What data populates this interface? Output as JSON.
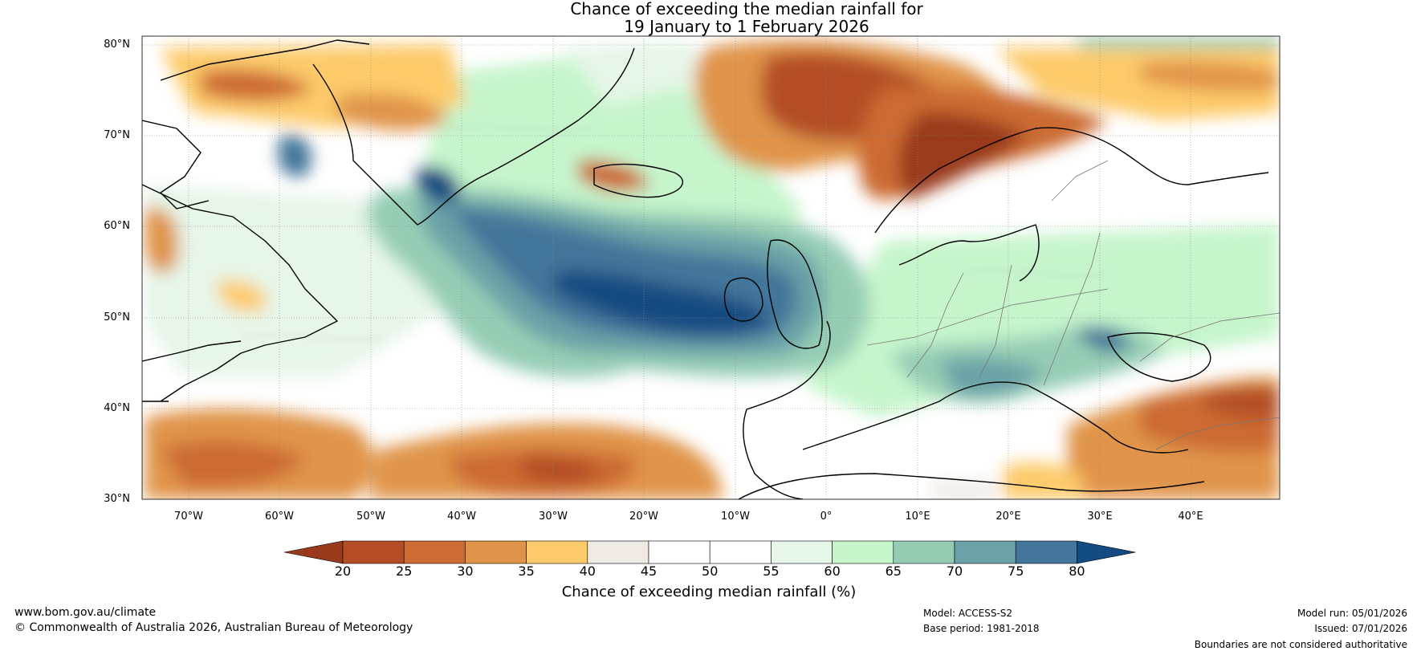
{
  "title": {
    "line1": "Chance of exceeding the median rainfall for",
    "line2": "19 January to 1 February 2026"
  },
  "map": {
    "lat_labels": [
      "80°N",
      "70°N",
      "60°N",
      "50°N",
      "40°N",
      "30°N"
    ],
    "lon_labels": [
      "70°W",
      "60°W",
      "50°W",
      "40°W",
      "30°W",
      "20°W",
      "10°W",
      "0°",
      "10°E",
      "20°E",
      "30°E",
      "40°E"
    ]
  },
  "colorbar": {
    "ticks": [
      "20",
      "25",
      "30",
      "35",
      "40",
      "45",
      "50",
      "55",
      "60",
      "65",
      "70",
      "75",
      "80"
    ],
    "colors": [
      "#9a3a1c",
      "#b44d25",
      "#cc6a33",
      "#e0944a",
      "#fdca6b",
      "#efe9e4",
      "#ffffff",
      "#ffffff",
      "#e6f6e8",
      "#c6f5cc",
      "#95cdb4",
      "#6aa2a7",
      "#43769a",
      "#124c82"
    ],
    "label": "Chance of exceeding median rainfall (%)"
  },
  "footer": {
    "url": "www.bom.gov.au/climate",
    "copyright": "© Commonwealth of Australia 2026, Australian Bureau of Meteorology",
    "model": "Model: ACCESS-S2",
    "base_period": "Base period: 1981-2018",
    "model_run": "Model run: 05/01/2026",
    "issued": "Issued: 07/01/2026",
    "disclaimer": "Boundaries are not considered authoritative"
  }
}
